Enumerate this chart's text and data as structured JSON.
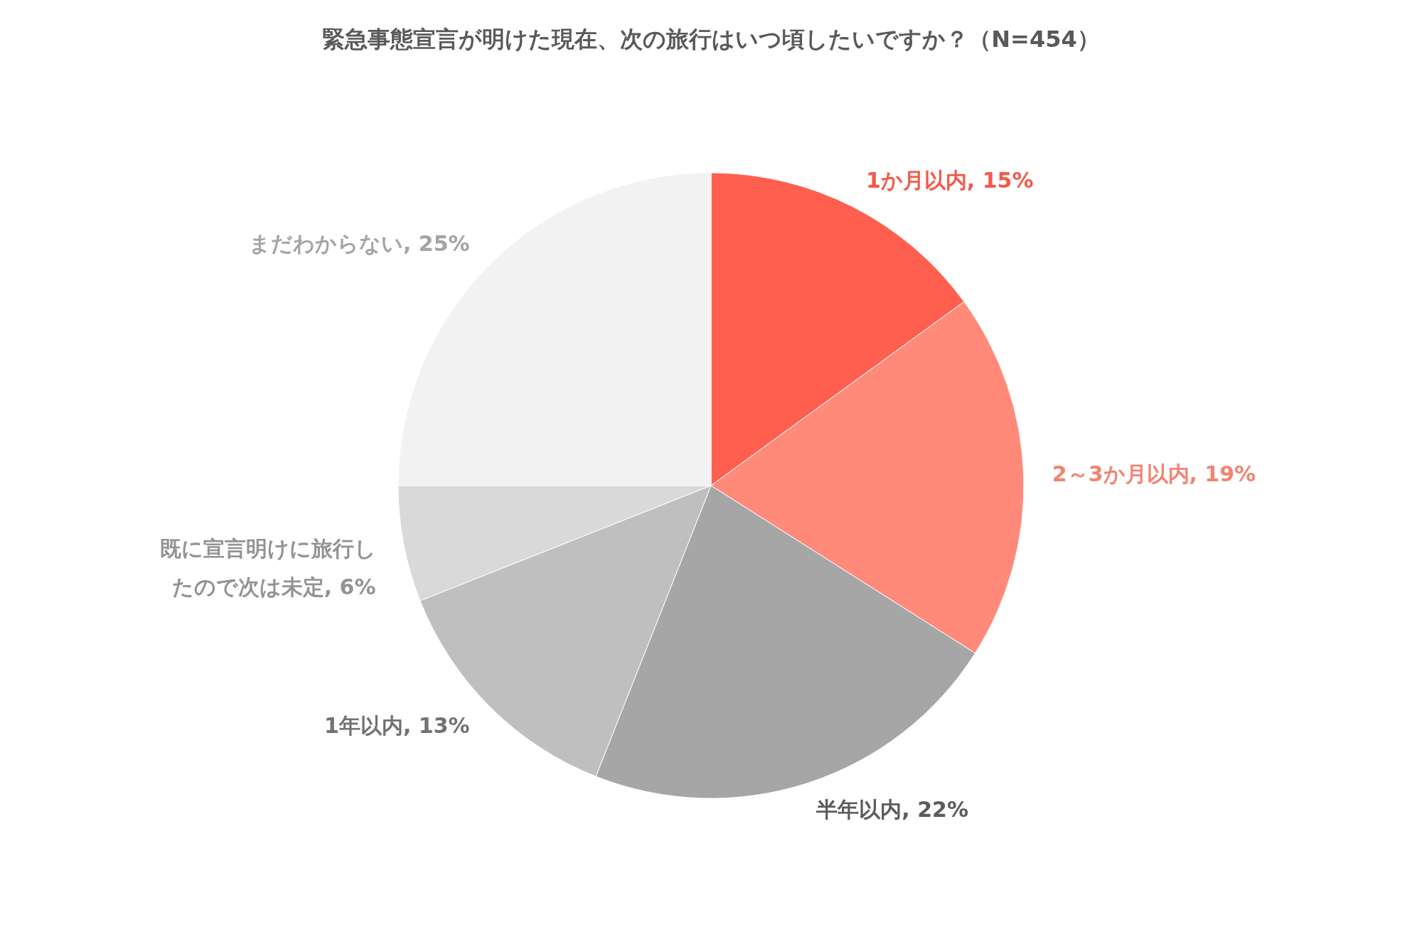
{
  "chart_data": {
    "type": "pie",
    "title": "緊急事態宣言が明けた現在、次の旅行はいつ頃したいですか？（N=454）",
    "categories": [
      "1か月以内",
      "2～3か月以内",
      "半年以内",
      "1年以内",
      "既に宣言明けに旅行したので次は未定",
      "まだわからない"
    ],
    "values": [
      15,
      19,
      22,
      13,
      6,
      25
    ],
    "colors": [
      "#ff5f4f",
      "#ff8a7a",
      "#a6a6a6",
      "#bfbfbf",
      "#d9d9d9",
      "#f2f2f2"
    ],
    "value_labels": [
      "15%",
      "19%",
      "22%",
      "13%",
      "6%",
      "25%"
    ],
    "legend": false
  }
}
